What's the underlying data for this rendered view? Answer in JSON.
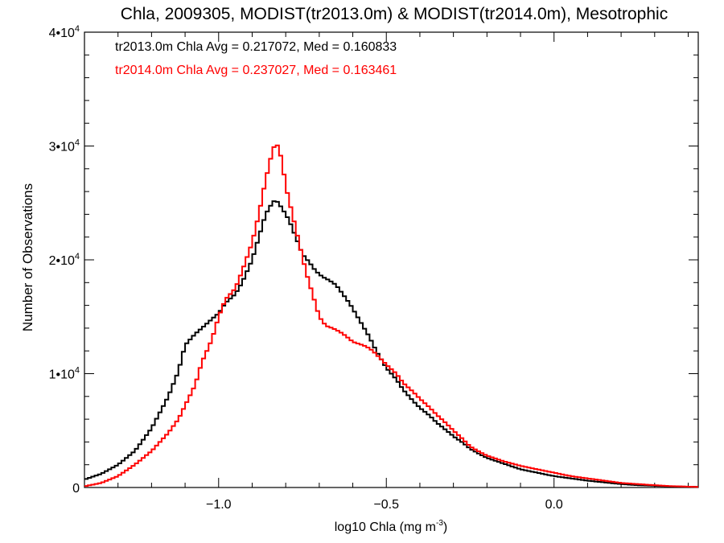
{
  "chart_data": {
    "type": "line",
    "title": "Chla, 2009305, MODIST(tr2013.0m) & MODIST(tr2014.0m), Mesotrophic",
    "xlabel_main": "log10 Chla (mg m",
    "xlabel_sup": "-3",
    "xlabel_close": ")",
    "ylabel": "Number of Observations",
    "xlim": [
      -1.4,
      0.43
    ],
    "ylim": [
      0,
      40000
    ],
    "x_ticks": [
      {
        "value": -1.0,
        "label": "−1.0"
      },
      {
        "value": -0.5,
        "label": "−0.5"
      },
      {
        "value": 0.0,
        "label": "0.0"
      }
    ],
    "y_ticks": [
      {
        "value": 0,
        "base": "0",
        "exp": ""
      },
      {
        "value": 10000,
        "base": "1•10",
        "exp": "4"
      },
      {
        "value": 20000,
        "base": "2•10",
        "exp": "4"
      },
      {
        "value": 30000,
        "base": "3•10",
        "exp": "4"
      },
      {
        "value": 40000,
        "base": "4•10",
        "exp": "4"
      }
    ],
    "stats": [
      {
        "text": "tr2013.0m Chla Avg = 0.217072, Med = 0.160833",
        "color": "#000000"
      },
      {
        "text": "tr2014.0m Chla Avg = 0.237027, Med = 0.163461",
        "color": "#ff0000"
      }
    ],
    "series": [
      {
        "color": "#000000",
        "points": [
          [
            -1.4,
            700
          ],
          [
            -1.35,
            1200
          ],
          [
            -1.3,
            2000
          ],
          [
            -1.25,
            3200
          ],
          [
            -1.2,
            5200
          ],
          [
            -1.15,
            8000
          ],
          [
            -1.12,
            10200
          ],
          [
            -1.1,
            12500
          ],
          [
            -1.07,
            13500
          ],
          [
            -1.05,
            14000
          ],
          [
            -1.02,
            14800
          ],
          [
            -1.0,
            15300
          ],
          [
            -0.98,
            16200
          ],
          [
            -0.95,
            17000
          ],
          [
            -0.93,
            18000
          ],
          [
            -0.9,
            20000
          ],
          [
            -0.88,
            22000
          ],
          [
            -0.86,
            24000
          ],
          [
            -0.84,
            25000
          ],
          [
            -0.83,
            25300
          ],
          [
            -0.81,
            24500
          ],
          [
            -0.79,
            23500
          ],
          [
            -0.77,
            22000
          ],
          [
            -0.75,
            20500
          ],
          [
            -0.73,
            19800
          ],
          [
            -0.71,
            19000
          ],
          [
            -0.69,
            18500
          ],
          [
            -0.67,
            18200
          ],
          [
            -0.65,
            17800
          ],
          [
            -0.63,
            17000
          ],
          [
            -0.61,
            16200
          ],
          [
            -0.59,
            15200
          ],
          [
            -0.57,
            14200
          ],
          [
            -0.55,
            13200
          ],
          [
            -0.53,
            12000
          ],
          [
            -0.5,
            10500
          ],
          [
            -0.47,
            9500
          ],
          [
            -0.45,
            8600
          ],
          [
            -0.42,
            7600
          ],
          [
            -0.4,
            7000
          ],
          [
            -0.37,
            6300
          ],
          [
            -0.35,
            5700
          ],
          [
            -0.32,
            5000
          ],
          [
            -0.3,
            4500
          ],
          [
            -0.27,
            3900
          ],
          [
            -0.25,
            3400
          ],
          [
            -0.22,
            2900
          ],
          [
            -0.2,
            2600
          ],
          [
            -0.15,
            2100
          ],
          [
            -0.1,
            1600
          ],
          [
            -0.05,
            1300
          ],
          [
            0.0,
            1000
          ],
          [
            0.05,
            800
          ],
          [
            0.1,
            600
          ],
          [
            0.15,
            450
          ],
          [
            0.2,
            300
          ],
          [
            0.25,
            200
          ],
          [
            0.3,
            150
          ],
          [
            0.35,
            100
          ],
          [
            0.43,
            50
          ]
        ]
      },
      {
        "color": "#ff0000",
        "points": [
          [
            -1.4,
            100
          ],
          [
            -1.35,
            400
          ],
          [
            -1.3,
            1000
          ],
          [
            -1.25,
            2000
          ],
          [
            -1.2,
            3200
          ],
          [
            -1.15,
            4800
          ],
          [
            -1.12,
            6000
          ],
          [
            -1.1,
            7200
          ],
          [
            -1.07,
            9000
          ],
          [
            -1.05,
            11000
          ],
          [
            -1.02,
            13000
          ],
          [
            -1.0,
            15000
          ],
          [
            -0.98,
            16500
          ],
          [
            -0.95,
            17500
          ],
          [
            -0.93,
            19000
          ],
          [
            -0.9,
            21500
          ],
          [
            -0.88,
            24000
          ],
          [
            -0.86,
            27000
          ],
          [
            -0.84,
            29500
          ],
          [
            -0.83,
            30300
          ],
          [
            -0.82,
            29800
          ],
          [
            -0.81,
            28500
          ],
          [
            -0.8,
            26500
          ],
          [
            -0.78,
            24000
          ],
          [
            -0.76,
            21500
          ],
          [
            -0.74,
            19000
          ],
          [
            -0.72,
            17000
          ],
          [
            -0.7,
            15000
          ],
          [
            -0.68,
            14200
          ],
          [
            -0.66,
            14000
          ],
          [
            -0.64,
            13700
          ],
          [
            -0.62,
            13300
          ],
          [
            -0.6,
            12800
          ],
          [
            -0.58,
            12600
          ],
          [
            -0.56,
            12400
          ],
          [
            -0.54,
            12000
          ],
          [
            -0.52,
            11400
          ],
          [
            -0.5,
            10800
          ],
          [
            -0.47,
            10000
          ],
          [
            -0.45,
            9200
          ],
          [
            -0.42,
            8400
          ],
          [
            -0.4,
            7800
          ],
          [
            -0.37,
            7000
          ],
          [
            -0.35,
            6400
          ],
          [
            -0.32,
            5600
          ],
          [
            -0.3,
            5000
          ],
          [
            -0.27,
            4200
          ],
          [
            -0.25,
            3600
          ],
          [
            -0.22,
            3100
          ],
          [
            -0.2,
            2800
          ],
          [
            -0.15,
            2300
          ],
          [
            -0.1,
            1900
          ],
          [
            -0.05,
            1600
          ],
          [
            0.0,
            1300
          ],
          [
            0.05,
            1000
          ],
          [
            0.1,
            800
          ],
          [
            0.15,
            600
          ],
          [
            0.2,
            400
          ],
          [
            0.25,
            300
          ],
          [
            0.3,
            200
          ],
          [
            0.35,
            120
          ],
          [
            0.43,
            50
          ]
        ]
      }
    ]
  }
}
